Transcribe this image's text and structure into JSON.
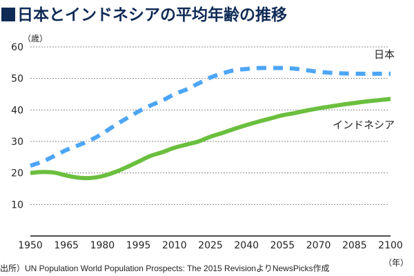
{
  "title": "日本とインドネシアの平均年齢の推移",
  "source": "出所）UN Population World Population Prospects: The 2015 RevisionよりNewsPicks作成",
  "chart_data": {
    "type": "line",
    "title": "日本とインドネシアの平均年齢の推移",
    "ylabel": "（歳）",
    "xlabel": "（年）",
    "ylim": [
      0,
      60
    ],
    "xlim": [
      1950,
      2100
    ],
    "yticks": [
      "10",
      "20",
      "30",
      "40",
      "50",
      "60"
    ],
    "xticks": [
      "1950",
      "1965",
      "1980",
      "1995",
      "2010",
      "2025",
      "2040",
      "2055",
      "2070",
      "2085",
      "2100"
    ],
    "grid": true,
    "series": [
      {
        "name": "日本",
        "color": "#4da6f5",
        "style": "dashed",
        "x": [
          1950,
          1955,
          1960,
          1965,
          1970,
          1975,
          1980,
          1985,
          1990,
          1995,
          2000,
          2005,
          2010,
          2015,
          2020,
          2025,
          2030,
          2035,
          2040,
          2045,
          2050,
          2055,
          2060,
          2065,
          2070,
          2075,
          2080,
          2085,
          2090,
          2095,
          2100
        ],
        "values": [
          22.3,
          23.6,
          25.4,
          27.3,
          28.8,
          30.4,
          32.5,
          35.0,
          37.3,
          39.5,
          41.4,
          43.0,
          45.0,
          46.5,
          48.4,
          50.3,
          51.6,
          52.6,
          53.0,
          53.3,
          53.3,
          53.3,
          53.1,
          52.6,
          52.1,
          51.8,
          51.6,
          51.5,
          51.5,
          51.5,
          51.5
        ]
      },
      {
        "name": "インドネシア",
        "color": "#6bbf3e",
        "style": "solid",
        "x": [
          1950,
          1955,
          1960,
          1965,
          1970,
          1975,
          1980,
          1985,
          1990,
          1995,
          2000,
          2005,
          2010,
          2015,
          2020,
          2025,
          2030,
          2035,
          2040,
          2045,
          2050,
          2055,
          2060,
          2065,
          2070,
          2075,
          2080,
          2085,
          2090,
          2095,
          2100
        ],
        "values": [
          20.0,
          20.3,
          20.1,
          19.2,
          18.5,
          18.4,
          19.0,
          20.2,
          21.8,
          23.6,
          25.4,
          26.6,
          28.0,
          29.0,
          30.0,
          31.5,
          32.7,
          34.0,
          35.2,
          36.3,
          37.3,
          38.3,
          39.0,
          39.8,
          40.5,
          41.1,
          41.7,
          42.2,
          42.7,
          43.1,
          43.5
        ]
      }
    ]
  }
}
